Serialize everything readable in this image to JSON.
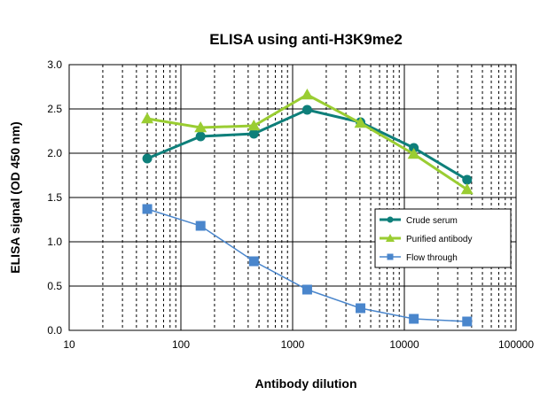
{
  "chart_data": {
    "type": "line",
    "title": "ELISA using anti-H3K9me2",
    "xlabel": "Antibody dilution",
    "ylabel": "ELISA signal (OD 450 nm)",
    "x_scale": "log",
    "xlim": [
      10,
      100000
    ],
    "ylim": [
      0,
      3.0
    ],
    "x_ticks": [
      "10",
      "100",
      "1000",
      "10000",
      "100000"
    ],
    "y_ticks": [
      "0.0",
      "0.5",
      "1.0",
      "1.5",
      "2.0",
      "2.5",
      "3.0"
    ],
    "grid": true,
    "legend_position": "right",
    "x": [
      50,
      150,
      450,
      1350,
      4050,
      12150,
      36450
    ],
    "series": [
      {
        "name": "Crude serum",
        "color": "#0e7f7a",
        "marker": "circle",
        "values": [
          1.94,
          2.19,
          2.22,
          2.49,
          2.35,
          2.06,
          1.7
        ]
      },
      {
        "name": "Purified antibody",
        "color": "#9acd32",
        "marker": "triangle",
        "values": [
          2.39,
          2.29,
          2.31,
          2.66,
          2.34,
          1.99,
          1.59
        ]
      },
      {
        "name": "Flow through",
        "color": "#4a86cc",
        "marker": "square",
        "values": [
          1.37,
          1.18,
          0.78,
          0.46,
          0.25,
          0.13,
          0.1
        ]
      }
    ]
  }
}
